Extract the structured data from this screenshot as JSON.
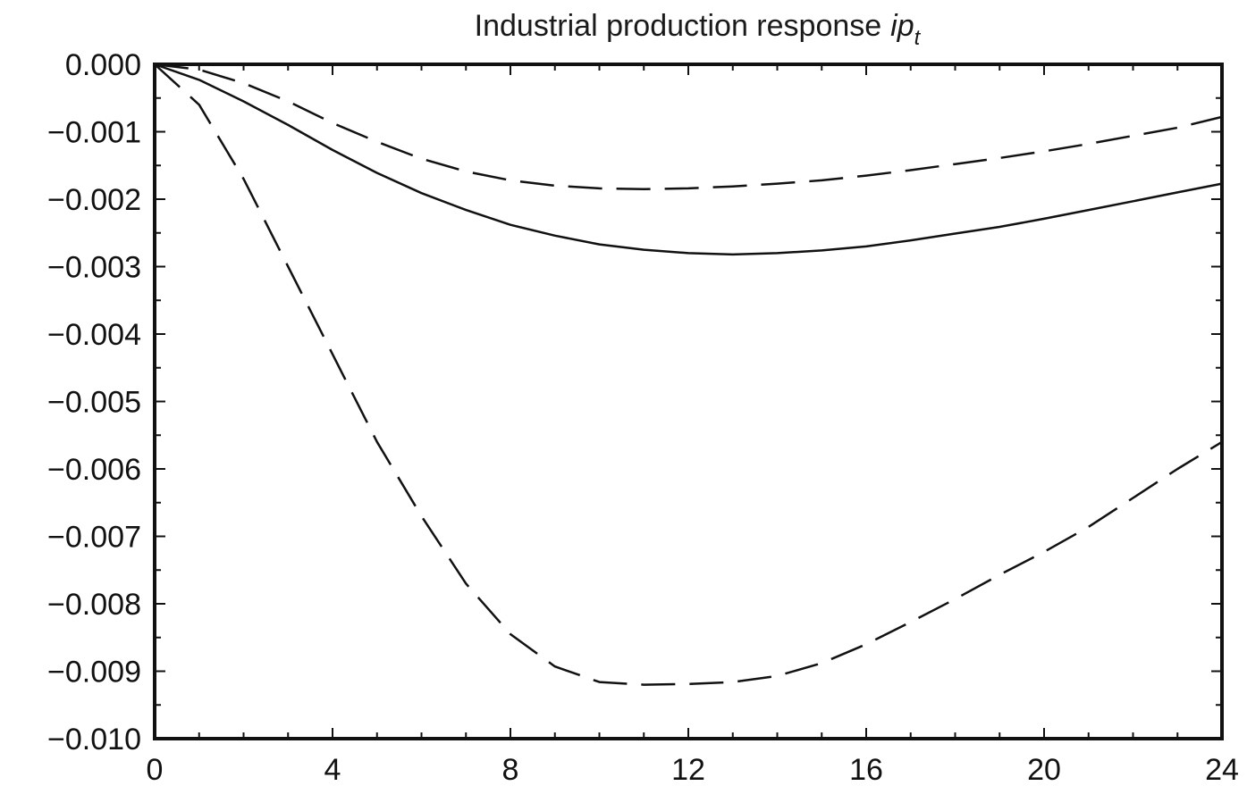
{
  "chart_data": {
    "type": "line",
    "title": "Industrial production response",
    "title_variable": "ip",
    "title_subscript": "t",
    "xlabel": "",
    "ylabel": "",
    "xlim": [
      0,
      24
    ],
    "ylim": [
      -0.01,
      0.0
    ],
    "x_ticks": [
      0,
      4,
      8,
      12,
      16,
      20,
      24
    ],
    "x_tick_labels": [
      "0",
      "4",
      "8",
      "12",
      "16",
      "20",
      "24"
    ],
    "y_ticks": [
      0.0,
      -0.001,
      -0.002,
      -0.003,
      -0.004,
      -0.005,
      -0.006,
      -0.007,
      -0.008,
      -0.009,
      -0.01
    ],
    "y_tick_labels": [
      "0.000",
      "−0.001",
      "−0.002",
      "−0.003",
      "−0.004",
      "−0.005",
      "−0.006",
      "−0.007",
      "−0.008",
      "−0.009",
      "−0.010"
    ],
    "grid": false,
    "legend": "none",
    "x": [
      0,
      1,
      2,
      3,
      4,
      5,
      6,
      7,
      8,
      9,
      10,
      11,
      12,
      13,
      14,
      15,
      16,
      17,
      18,
      19,
      20,
      21,
      22,
      23,
      24
    ],
    "series": [
      {
        "style": "solid",
        "color": "#111111",
        "values": [
          0.0,
          -0.00023,
          -0.00055,
          -0.0009,
          -0.00127,
          -0.00161,
          -0.00191,
          -0.00216,
          -0.00238,
          -0.00254,
          -0.00267,
          -0.00275,
          -0.0028,
          -0.00282,
          -0.0028,
          -0.00276,
          -0.0027,
          -0.00261,
          -0.00251,
          -0.00241,
          -0.00229,
          -0.00216,
          -0.00203,
          -0.0019,
          -0.00177
        ]
      },
      {
        "style": "dashed",
        "color": "#111111",
        "values": [
          0.0,
          -8e-05,
          -0.00028,
          -0.00055,
          -0.00087,
          -0.00115,
          -0.0014,
          -0.00159,
          -0.00172,
          -0.0018,
          -0.00184,
          -0.00185,
          -0.00184,
          -0.00181,
          -0.00177,
          -0.00172,
          -0.00165,
          -0.00157,
          -0.00148,
          -0.00139,
          -0.00129,
          -0.00118,
          -0.00106,
          -0.00094,
          -0.00078
        ]
      },
      {
        "style": "dashed",
        "color": "#111111",
        "values": [
          0.0,
          -0.0006,
          -0.0017,
          -0.003,
          -0.0043,
          -0.0056,
          -0.0067,
          -0.0077,
          -0.00845,
          -0.00893,
          -0.00916,
          -0.0092,
          -0.00919,
          -0.00916,
          -0.00907,
          -0.00888,
          -0.0086,
          -0.00827,
          -0.00793,
          -0.00757,
          -0.00723,
          -0.00686,
          -0.00643,
          -0.006,
          -0.0056
        ]
      }
    ]
  }
}
